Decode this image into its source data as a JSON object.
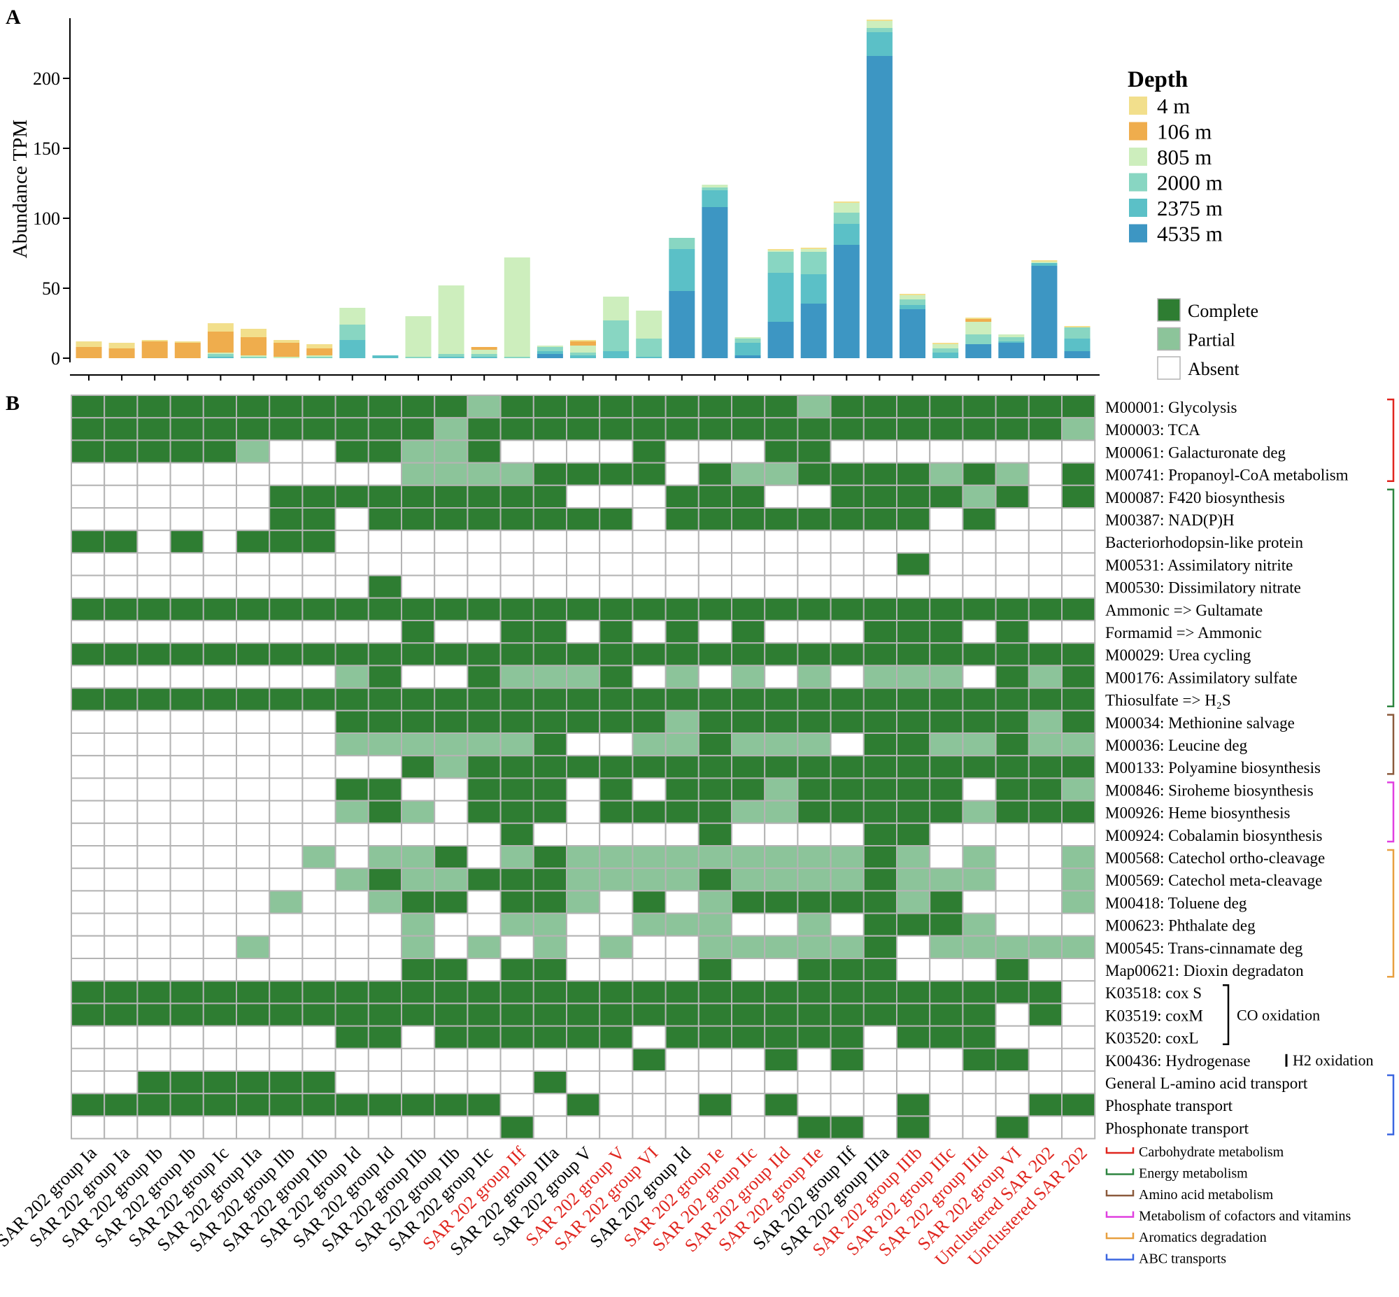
{
  "panel_labels": {
    "a": "A",
    "b": "B"
  },
  "colors": {
    "4 m": "#f2df8c",
    "106 m": "#efad4d",
    "805 m": "#cdeebd",
    "2000 m": "#88d6c2",
    "2375 m": "#5bc0c7",
    "4535 m": "#3d96c3",
    "complete": "#2e7d32",
    "partial": "#8cc49a",
    "absent": "#ffffff",
    "red_label": "#e0261f"
  },
  "chart_data": [
    {
      "type": "bar",
      "stacked": true,
      "ylabel": "Abundance TPM",
      "ylim": [
        0,
        240
      ],
      "yticks": [
        0,
        50,
        100,
        150,
        200
      ],
      "legend_title": "Depth",
      "legend_position": "right",
      "categories": [
        "SAR 202 group Ia",
        "SAR 202 group Ia",
        "SAR 202 group Ib",
        "SAR 202 group Ib",
        "SAR 202 group Ic",
        "SAR 202 group IIa",
        "SAR 202 group IIb",
        "SAR 202 group IIb",
        "SAR 202 group Id",
        "SAR 202 group Id",
        "SAR 202 group IIb",
        "SAR 202 group IIb",
        "SAR 202 group IIc",
        "SAR 202 group IIf",
        "SAR 202 group IIIa",
        "SAR 202 group V",
        "SAR 202 group V",
        "SAR 202 group VI",
        "SAR 202 group Id",
        "SAR 202 group Ie",
        "SAR 202 group IIc",
        "SAR 202 group IId",
        "SAR 202 group IIe",
        "SAR 202 group IIf",
        "SAR 202 group IIIa",
        "SAR 202 group IIIb",
        "SAR 202 group IIIc",
        "SAR 202 group IIId",
        "SAR 202 group VI",
        "Unclustered SAR 202",
        "Unclustered SAR 202"
      ],
      "series": [
        {
          "name": "4 m",
          "values": [
            4,
            4,
            1,
            1,
            6,
            6,
            2,
            3,
            0,
            0,
            0,
            0,
            0,
            0,
            0,
            1,
            0,
            0,
            0,
            0,
            0,
            1,
            1,
            1,
            1,
            1,
            1,
            1,
            0,
            1,
            1
          ]
        },
        {
          "name": "106 m",
          "values": [
            8,
            7,
            12,
            11,
            15,
            13,
            10,
            5,
            0,
            0,
            0,
            0,
            2,
            0,
            0,
            3,
            0,
            0,
            0,
            0,
            0,
            0,
            0,
            0,
            0,
            0,
            0,
            2,
            0,
            0,
            0
          ]
        },
        {
          "name": "805 m",
          "values": [
            0,
            0,
            0,
            0,
            1,
            1,
            1,
            1,
            12,
            0,
            29,
            49,
            3,
            71,
            1,
            5,
            17,
            20,
            0,
            2,
            1,
            1,
            2,
            7,
            5,
            3,
            3,
            9,
            2,
            1,
            0
          ]
        },
        {
          "name": "2000 m",
          "values": [
            0,
            0,
            0,
            0,
            2,
            1,
            0,
            1,
            11,
            0,
            1,
            2,
            2,
            1,
            3,
            2,
            22,
            13,
            8,
            2,
            3,
            15,
            16,
            8,
            3,
            4,
            3,
            7,
            3,
            0,
            8
          ]
        },
        {
          "name": "2375 m",
          "values": [
            0,
            0,
            0,
            0,
            1,
            0,
            0,
            0,
            13,
            2,
            0,
            1,
            1,
            0,
            2,
            2,
            5,
            1,
            30,
            12,
            9,
            35,
            21,
            15,
            17,
            3,
            4,
            0,
            1,
            2,
            9
          ]
        },
        {
          "name": "4535 m",
          "values": [
            0,
            0,
            0,
            0,
            0,
            0,
            0,
            0,
            0,
            0,
            0,
            0,
            0,
            0,
            3,
            0,
            0,
            0,
            48,
            108,
            2,
            26,
            39,
            81,
            216,
            35,
            0,
            10,
            11,
            66,
            5
          ]
        }
      ]
    },
    {
      "type": "heatmap",
      "value_legend": [
        "Complete",
        "Partial",
        "Absent"
      ],
      "columns": [
        "SAR 202 group Ia",
        "SAR 202 group Ia",
        "SAR 202 group Ib",
        "SAR 202 group Ib",
        "SAR 202 group Ic",
        "SAR 202 group IIa",
        "SAR 202 group IIb",
        "SAR 202 group IIb",
        "SAR 202 group Id",
        "SAR 202 group Id",
        "SAR 202 group IIb",
        "SAR 202 group IIb",
        "SAR 202 group IIc",
        "SAR 202 group IIf",
        "SAR 202 group IIIa",
        "SAR 202 group V",
        "SAR 202 group V",
        "SAR 202 group VI",
        "SAR 202 group Id",
        "SAR 202 group Ie",
        "SAR 202 group IIc",
        "SAR 202 group IId",
        "SAR 202 group IIe",
        "SAR 202 group IIf",
        "SAR 202 group IIIa",
        "SAR 202 group IIIb",
        "SAR 202 group IIIc",
        "SAR 202 group IIId",
        "SAR 202 group VI",
        "Unclustered SAR 202",
        "Unclustered SAR 202"
      ],
      "red_columns": [
        13,
        16,
        17,
        19,
        20,
        21,
        22,
        25,
        26,
        27,
        28,
        29,
        30
      ],
      "rows": [
        "M00001: Glycolysis",
        "M00003: TCA",
        "M00061: Galacturonate deg",
        "M00741: Propanoyl-CoA metabolism",
        "M00087: F420 biosynthesis",
        "M00387: NAD(P)H",
        "Bacteriorhodopsin-like protein",
        "M00531: Assimilatory nitrite",
        "M00530: Dissimilatory nitrate",
        "Ammonic => Gultamate",
        "Formamid => Ammonic",
        "M00029: Urea cycling",
        "M00176: Assimilatory sulfate",
        "Thiosulfate => H₂S",
        "M00034: Methionine salvage",
        "M00036: Leucine deg",
        "M00133: Polyamine biosynthesis",
        "M00846: Siroheme biosynthesis",
        "M00926: Heme biosynthesis",
        "M00924: Cobalamin biosynthesis",
        "M00568: Catechol ortho-cleavage",
        "M00569: Catechol meta-cleavage",
        "M00418: Toluene deg",
        "M00623: Phthalate deg",
        "M00545: Trans-cinnamate deg",
        "Map00621: Dioxin degradaton",
        "K03518: cox S",
        "K03519: coxM",
        "K03520: coxL",
        "K00436: Hydrogenase",
        "General L-amino acid transport",
        "Phosphate transport",
        "Phosphonate transport"
      ],
      "cells": [
        "CCCCCCCCCCCCPCCCCCCCCCPCCCCCCCC",
        "CCCCCCCCCCCPCCCCCCCCCCCCCCCCCCP",
        "CCCCCPAACCPPCAAAACAAACCAAAAAAAA",
        "AAAAAAAAAAPPPPCCCCACPPCCCCPCPAC",
        "AAAAAACCCCCCCCCAAACCCAACCCCPCAC",
        "AAAAAACCACCCCCCCCACCCCCCCCACAAA",
        "CCACACCCAAAAAAAAAAAAAAAAAAAAAAA",
        "AAAAAAAAAAAAAAAAAAAAAAAAACAAAAA",
        "AAAAAAAAACAAAAAAAAAAAAAAAAAAAAA",
        "CCCCCCCCCCCCCCCCCCCCCCCCCCCCCCC",
        "AAAAAAAAAACAACCACACACAAACCCACAA",
        "CCCCCCCCCCCCCCCCCCCCCCCCCCCCCCC",
        "AAAAAAAAPCAACPPPCAPAPAPAPPPACPC",
        "CCCCCCCCCCCCCCCCCCCCCCCCCCCCCCC",
        "AAAAAAAACCCCCCCCCCPCCCCCCCCCCPC",
        "AAAAAAAAPPPPPPCAAPPCPPPACCPPCPP",
        "AAAAAAAAAACPCCCCCCCCCCCCCCCCCCC",
        "AAAAAAAACCAACCCACACCCPCCCCCACCP",
        "AAAAAAAAPCPACCCACCCCPPCCCCCPCCC",
        "AAAAAAAAAAAAACAAAAACAAAACCAAAAA",
        "AAAAAAAPAPPCAPCPPPPPPPPPCPAPAAP",
        "AAAAAAAAPCPPCCCPPPPCPPPPCPPPAAP",
        "AAAAAAPAAPCCACCPACAPCCCCCPCAAAP",
        "AAAAAAAAAAPAAPPAAPPPAAPACCCPAAA",
        "AAAAAPAAAAPAPAPAPAAPPPPPCAPPPPP",
        "AAAAAAAAAACCACCAAAACAACCCAAACAA",
        "CCCCCCCCCCCCCCCCCCCCCCCCCCCCCCA",
        "CCCCCCCCCCCCCCCCCCCCCCCCCCCCACA",
        "AAAAAAAACCACCCCCCACCCCCCACCCAAA",
        "AAAAAAAAAAAAAAAAACAAACACAAACCAA",
        "AACCCCCCAAAAAACAAAAAAAAAAAAAAAA",
        "CCCCCCCCCCCCCAACAAACACAAACAAACC",
        "AAAAAAAAAAAAACAAAAAAAACCACAACAA"
      ],
      "row_groups": [
        {
          "name": "Carbohydrate metabolism",
          "color": "#e0261f",
          "rows": [
            0,
            3
          ]
        },
        {
          "name": "Energy metabolism",
          "color": "#2e8540",
          "rows": [
            4,
            13
          ]
        },
        {
          "name": "Amino acid metabolism",
          "color": "#8b5a3c",
          "rows": [
            14,
            16
          ]
        },
        {
          "name": "Metabolism of cofactors and vitamins",
          "color": "#e040e0",
          "rows": [
            17,
            19
          ]
        },
        {
          "name": "Aromatics degradation",
          "color": "#e8a040",
          "rows": [
            20,
            25
          ]
        },
        {
          "name": "ABC transports",
          "color": "#3b66e0",
          "rows": [
            30,
            32
          ]
        }
      ],
      "sub_brackets": [
        {
          "name": "CO oxidation",
          "rows": [
            26,
            28
          ]
        },
        {
          "name": "H2 oxidation",
          "rows": [
            29,
            29
          ]
        }
      ]
    }
  ]
}
